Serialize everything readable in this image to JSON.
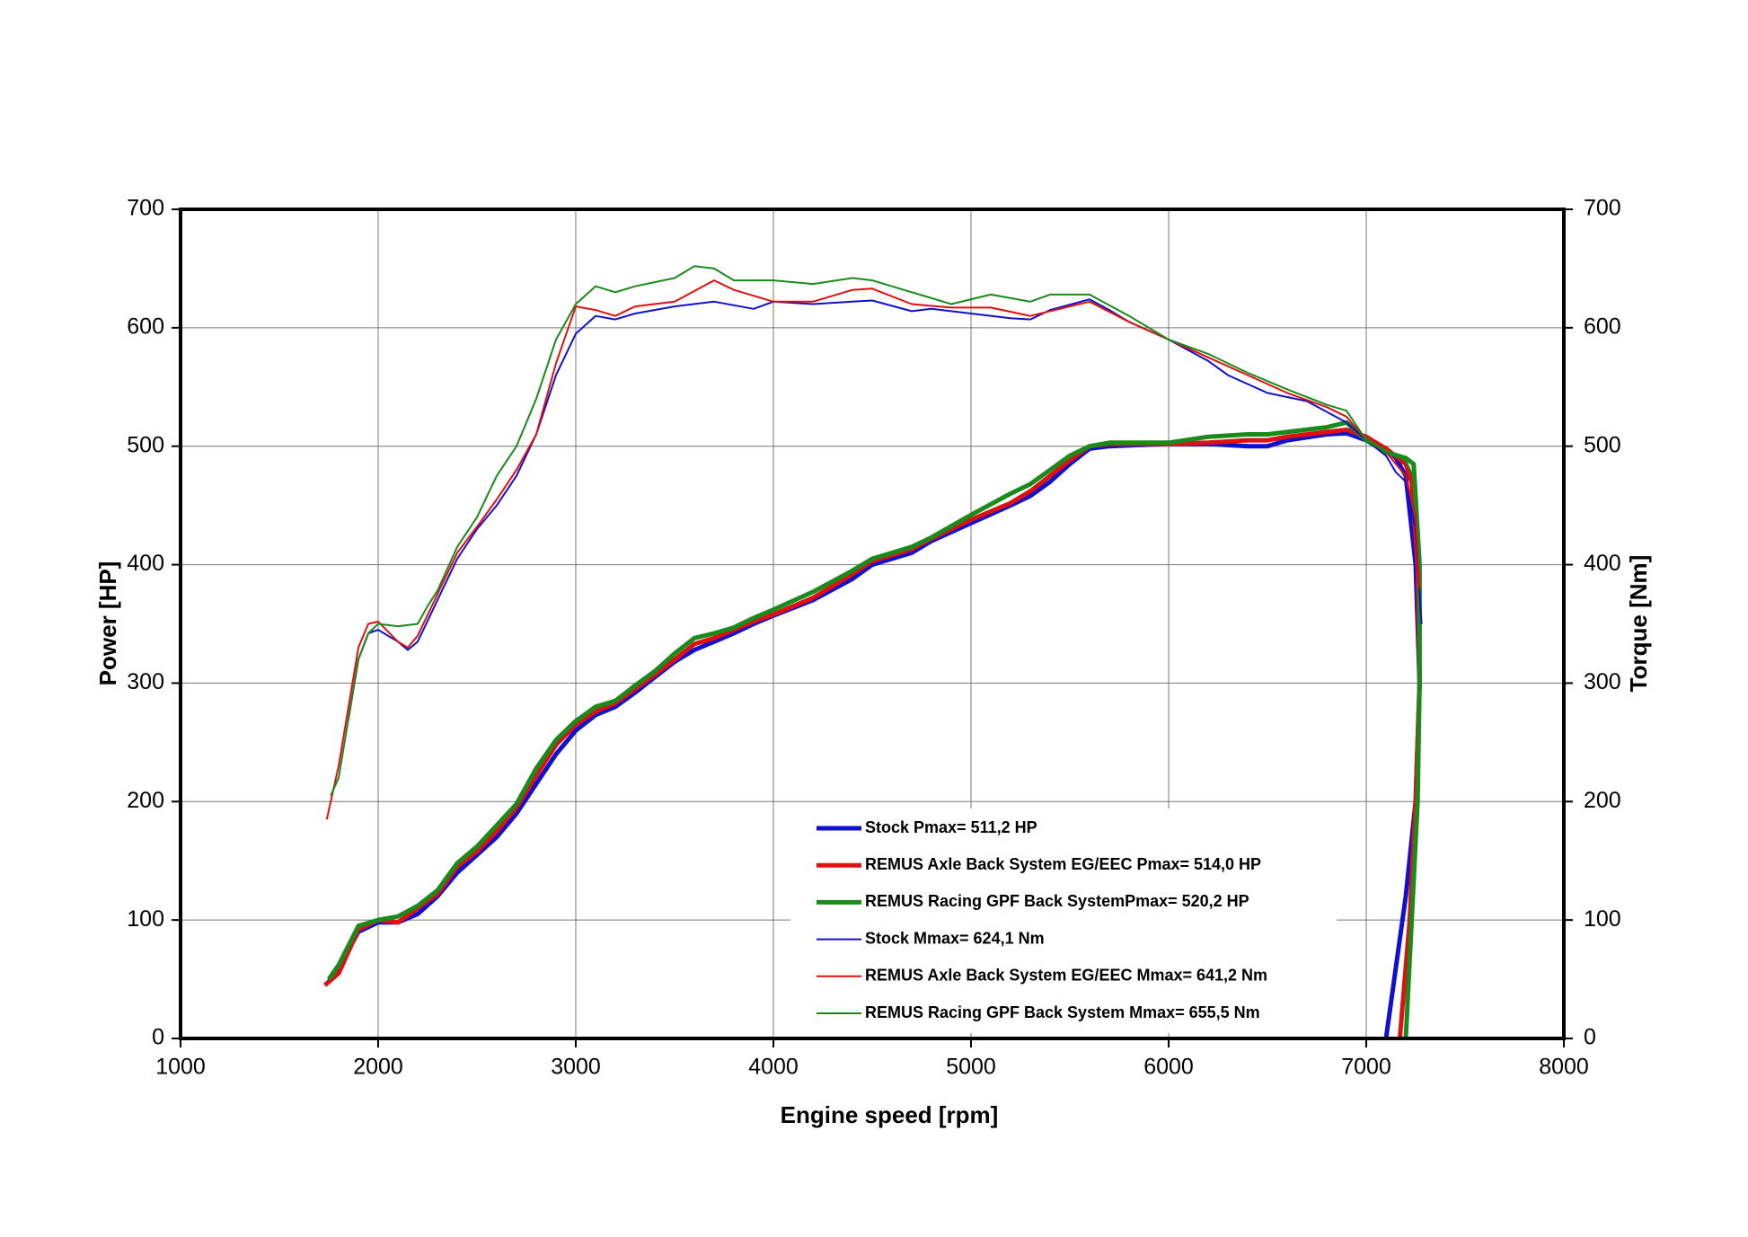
{
  "chart_data": {
    "type": "line",
    "x_label": "Engine speed [rpm]",
    "y_label": "Power [HP]",
    "y2_label": "Torque [Nm]",
    "xlim": [
      1000,
      8000
    ],
    "xticks": [
      1000,
      2000,
      3000,
      4000,
      5000,
      6000,
      7000,
      8000
    ],
    "ylim": [
      0,
      700
    ],
    "yticks": [
      0,
      100,
      200,
      300,
      400,
      500,
      600,
      700
    ],
    "y2lim": [
      0,
      700
    ],
    "y2ticks": [
      0,
      100,
      200,
      300,
      400,
      500,
      600,
      700
    ],
    "grid": true,
    "series": [
      {
        "name": "Stock Pmax= 511,2 HP",
        "color": "#1010d0",
        "line_width": 5,
        "axis": "y",
        "x": [
          1750,
          1800,
          1900,
          2000,
          2100,
          2200,
          2300,
          2400,
          2500,
          2600,
          2700,
          2800,
          2900,
          3000,
          3100,
          3200,
          3300,
          3400,
          3500,
          3600,
          3700,
          3800,
          3900,
          4000,
          4200,
          4400,
          4500,
          4700,
          4800,
          5000,
          5200,
          5300,
          5400,
          5500,
          5600,
          5700,
          6000,
          6200,
          6400,
          6500,
          6600,
          6800,
          6900,
          7000,
          7100,
          7150,
          7200,
          7250,
          7270,
          7250,
          7200,
          7150,
          7100
        ],
        "values": [
          48,
          60,
          90,
          98,
          98,
          105,
          120,
          140,
          155,
          170,
          190,
          215,
          240,
          260,
          273,
          280,
          292,
          305,
          318,
          328,
          335,
          342,
          350,
          357,
          370,
          388,
          400,
          410,
          420,
          435,
          450,
          458,
          470,
          485,
          498,
          500,
          502,
          502,
          500,
          500,
          505,
          510,
          511,
          505,
          498,
          490,
          475,
          400,
          300,
          200,
          120,
          60,
          0
        ]
      },
      {
        "name": "REMUS Axle Back System EG/EEC Pmax=  514,0 HP",
        "color": "#e01010",
        "line_width": 5,
        "axis": "y",
        "x": [
          1730,
          1800,
          1900,
          2000,
          2100,
          2200,
          2300,
          2400,
          2500,
          2600,
          2700,
          2800,
          2900,
          3000,
          3100,
          3200,
          3300,
          3400,
          3500,
          3600,
          3700,
          3800,
          3900,
          4000,
          4200,
          4400,
          4500,
          4700,
          4800,
          5000,
          5200,
          5300,
          5400,
          5500,
          5600,
          5700,
          6000,
          6200,
          6400,
          6500,
          6600,
          6800,
          6900,
          7000,
          7100,
          7200,
          7230,
          7260,
          7270,
          7250,
          7220,
          7170
        ],
        "values": [
          45,
          55,
          92,
          100,
          98,
          110,
          122,
          145,
          158,
          175,
          195,
          222,
          248,
          265,
          276,
          283,
          295,
          307,
          320,
          333,
          338,
          345,
          352,
          358,
          372,
          392,
          403,
          413,
          422,
          438,
          452,
          462,
          475,
          488,
          500,
          502,
          502,
          503,
          505,
          505,
          508,
          512,
          514,
          508,
          498,
          485,
          470,
          400,
          300,
          200,
          100,
          0
        ]
      },
      {
        "name": "REMUS Racing GPF Back SystemPmax= 520,2 HP",
        "color": "#1a8a1a",
        "line_width": 5,
        "axis": "y",
        "x": [
          1750,
          1800,
          1900,
          2000,
          2100,
          2200,
          2300,
          2400,
          2500,
          2600,
          2700,
          2800,
          2900,
          3000,
          3100,
          3200,
          3300,
          3400,
          3500,
          3600,
          3700,
          3800,
          3900,
          4000,
          4200,
          4400,
          4500,
          4700,
          4800,
          5000,
          5200,
          5300,
          5400,
          5500,
          5600,
          5700,
          6000,
          6200,
          6400,
          6500,
          6600,
          6800,
          6900,
          7000,
          7100,
          7200,
          7240,
          7270,
          7270,
          7260,
          7230,
          7200
        ],
        "values": [
          50,
          62,
          95,
          100,
          103,
          112,
          125,
          148,
          162,
          180,
          198,
          228,
          252,
          268,
          280,
          285,
          298,
          310,
          325,
          338,
          342,
          347,
          355,
          362,
          377,
          395,
          405,
          415,
          423,
          442,
          460,
          468,
          480,
          492,
          500,
          503,
          503,
          508,
          510,
          510,
          512,
          516,
          520,
          505,
          495,
          490,
          485,
          400,
          300,
          200,
          100,
          0
        ]
      },
      {
        "name": "Stock Mmax= 624,1 Nm",
        "color": "#1010d0",
        "line_width": 2,
        "axis": "y2",
        "x": [
          1850,
          1900,
          1950,
          2000,
          2100,
          2150,
          2200,
          2300,
          2400,
          2500,
          2600,
          2700,
          2800,
          2900,
          3000,
          3100,
          3200,
          3300,
          3500,
          3700,
          3900,
          4000,
          4200,
          4400,
          4500,
          4700,
          4800,
          5000,
          5200,
          5300,
          5400,
          5600,
          5700,
          5800,
          6000,
          6200,
          6300,
          6500,
          6700,
          6900,
          7000,
          7100,
          7150,
          7200,
          7250,
          7280
        ],
        "values": [
          270,
          320,
          342,
          345,
          335,
          328,
          335,
          370,
          405,
          430,
          450,
          475,
          510,
          560,
          595,
          610,
          607,
          612,
          618,
          622,
          616,
          622,
          620,
          622,
          623,
          614,
          616,
          612,
          608,
          607,
          615,
          624,
          615,
          605,
          590,
          572,
          560,
          545,
          538,
          520,
          505,
          492,
          478,
          470,
          430,
          350
        ]
      },
      {
        "name": "REMUS Axle Back System EG/EEC Mmax= 641,2 Nm",
        "color": "#e01010",
        "line_width": 2,
        "axis": "y2",
        "x": [
          1740,
          1800,
          1900,
          1950,
          2000,
          2100,
          2150,
          2200,
          2300,
          2400,
          2500,
          2600,
          2700,
          2800,
          2900,
          3000,
          3100,
          3200,
          3300,
          3500,
          3700,
          3800,
          4000,
          4200,
          4400,
          4500,
          4700,
          4900,
          5100,
          5300,
          5400,
          5600,
          5800,
          6000,
          6200,
          6400,
          6600,
          6800,
          6900,
          7000,
          7100,
          7200,
          7250,
          7270
        ],
        "values": [
          185,
          230,
          330,
          350,
          352,
          335,
          330,
          340,
          375,
          410,
          432,
          455,
          480,
          510,
          570,
          618,
          615,
          610,
          618,
          622,
          640,
          632,
          622,
          622,
          632,
          633,
          620,
          617,
          617,
          610,
          614,
          622,
          605,
          590,
          575,
          560,
          545,
          533,
          525,
          505,
          495,
          475,
          440,
          380
        ]
      },
      {
        "name": "REMUS Racing GPF Back System Mmax= 655,5 Nm",
        "color": "#1a8a1a",
        "line_width": 2,
        "axis": "y2",
        "x": [
          1760,
          1800,
          1900,
          1950,
          2000,
          2100,
          2200,
          2250,
          2300,
          2400,
          2500,
          2600,
          2700,
          2800,
          2900,
          3000,
          3100,
          3200,
          3300,
          3500,
          3600,
          3700,
          3800,
          4000,
          4200,
          4400,
          4500,
          4700,
          4900,
          5100,
          5300,
          5400,
          5600,
          5800,
          6000,
          6200,
          6400,
          6600,
          6800,
          6900,
          7000,
          7100,
          7200,
          7250,
          7270
        ],
        "values": [
          205,
          220,
          320,
          342,
          350,
          348,
          350,
          365,
          378,
          415,
          440,
          475,
          500,
          540,
          590,
          620,
          635,
          630,
          635,
          642,
          652,
          650,
          640,
          640,
          637,
          642,
          640,
          630,
          620,
          628,
          622,
          628,
          628,
          610,
          590,
          578,
          562,
          548,
          535,
          530,
          505,
          495,
          488,
          470,
          400
        ]
      }
    ]
  }
}
